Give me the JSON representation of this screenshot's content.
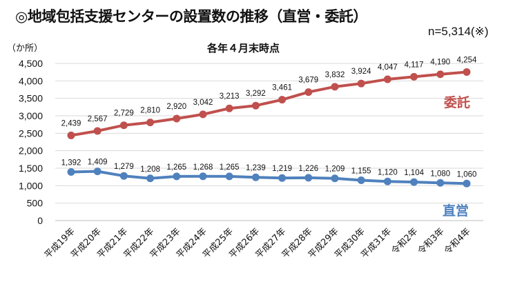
{
  "header": {
    "title": "◎地域包括支援センターの設置数の推移（直営・委託）",
    "note": "n=5,314(※)"
  },
  "chart_data": {
    "type": "line",
    "title": "各年４月末時点",
    "ylabel": "（か所）",
    "ylim": [
      0,
      4500
    ],
    "yticks": [
      0,
      500,
      1000,
      1500,
      2000,
      2500,
      3000,
      3500,
      4000,
      4500
    ],
    "ytick_labels": [
      "0",
      "500",
      "1,000",
      "1,500",
      "2,000",
      "2,500",
      "3,000",
      "3,500",
      "4,000",
      "4,500"
    ],
    "grid": true,
    "categories": [
      "平成19年",
      "平成20年",
      "平成21年",
      "平成22年",
      "平成23年",
      "平成24年",
      "平成25年",
      "平成26年",
      "平成27年",
      "平成28年",
      "平成29年",
      "平成30年",
      "平成31年",
      "令和2年",
      "令和3年",
      "令和4年"
    ],
    "series": [
      {
        "name": "委託",
        "color": "#c0504d",
        "values": [
          2439,
          2567,
          2729,
          2810,
          2920,
          3042,
          3213,
          3292,
          3461,
          3679,
          3832,
          3924,
          4047,
          4117,
          4190,
          4254
        ]
      },
      {
        "name": "直営",
        "color": "#4f81bd",
        "values": [
          1392,
          1409,
          1279,
          1208,
          1265,
          1268,
          1265,
          1239,
          1219,
          1226,
          1209,
          1155,
          1120,
          1104,
          1080,
          1060
        ]
      }
    ]
  }
}
